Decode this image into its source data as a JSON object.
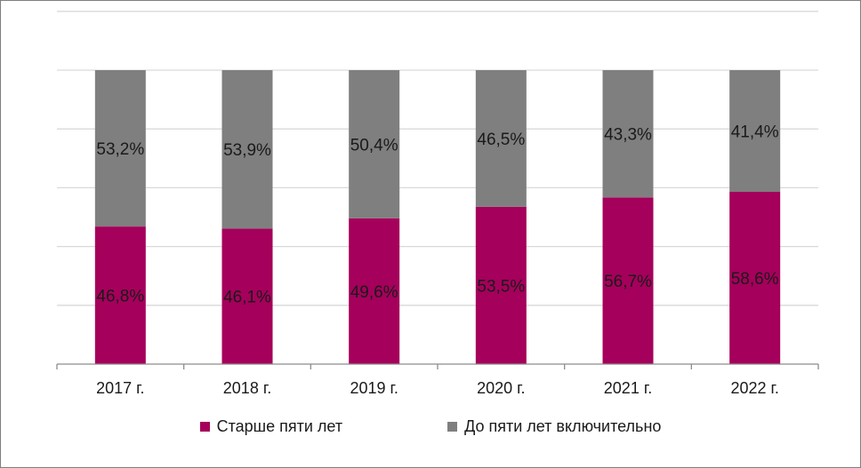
{
  "chart_data": {
    "type": "bar",
    "stacked": true,
    "categories": [
      "2017 г.",
      "2018 г.",
      "2019 г.",
      "2020 г.",
      "2021 г.",
      "2022 г."
    ],
    "series": [
      {
        "name": "Старше пяти лет",
        "color": "#a5005b",
        "values": [
          46.8,
          46.1,
          49.6,
          53.5,
          56.7,
          58.6
        ],
        "labels": [
          "46,8%",
          "46,1%",
          "49,6%",
          "53,5%",
          "56,7%",
          "58,6%"
        ]
      },
      {
        "name": "До пяти лет включительно",
        "color": "#7f7f7f",
        "values": [
          53.2,
          53.9,
          50.4,
          46.5,
          43.3,
          41.4
        ],
        "labels": [
          "53,2%",
          "53,9%",
          "50,4%",
          "46,5%",
          "43,3%",
          "41,4%"
        ]
      }
    ],
    "ylim": [
      0,
      120
    ],
    "grid": true,
    "legend": "bottom"
  }
}
